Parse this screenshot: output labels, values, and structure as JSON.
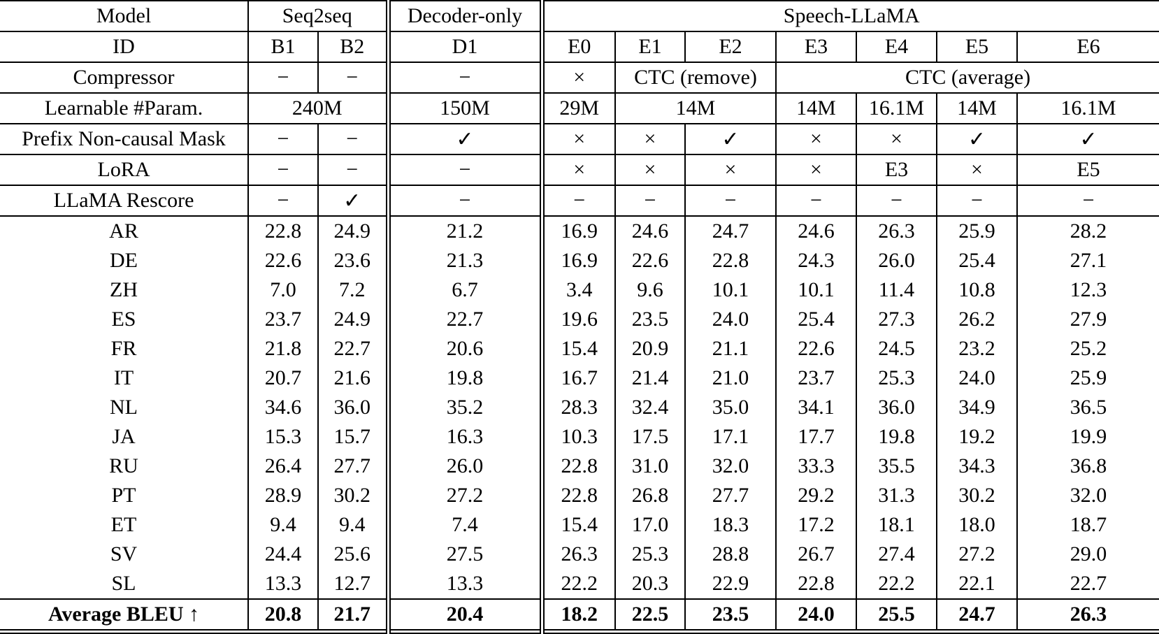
{
  "colors": {
    "text": "#000000",
    "background": "#ffffff"
  },
  "table": {
    "top_header": {
      "model_label": "Model",
      "groups": [
        {
          "label": "Seq2seq"
        },
        {
          "label": "Decoder-only"
        },
        {
          "label": "Speech-LLaMA"
        }
      ]
    },
    "id_row": {
      "label": "ID",
      "ids": [
        "B1",
        "B2",
        "D1",
        "E0",
        "E1",
        "E2",
        "E3",
        "E4",
        "E5",
        "E6"
      ]
    },
    "config_rows": [
      {
        "label": "Compressor",
        "cells": [
          {
            "text": "−"
          },
          {
            "text": "−"
          },
          {
            "text": "−"
          },
          {
            "text": "×"
          },
          {
            "text": "CTC (remove)"
          },
          {
            "text": "CTC (average)"
          }
        ]
      },
      {
        "label": "Learnable #Param.",
        "cells": [
          {
            "text": "240M"
          },
          {
            "text": "150M"
          },
          {
            "text": "29M"
          },
          {
            "text": "14M"
          },
          {
            "text": "14M"
          },
          {
            "text": "16.1M"
          },
          {
            "text": "14M"
          },
          {
            "text": "16.1M"
          }
        ]
      },
      {
        "label": "Prefix Non-causal Mask",
        "cells": [
          {
            "text": "−"
          },
          {
            "text": "−"
          },
          {
            "text": "✓"
          },
          {
            "text": "×"
          },
          {
            "text": "×"
          },
          {
            "text": "✓"
          },
          {
            "text": "×"
          },
          {
            "text": "×"
          },
          {
            "text": "✓"
          },
          {
            "text": "✓"
          }
        ]
      },
      {
        "label": "LoRA",
        "cells": [
          {
            "text": "−"
          },
          {
            "text": "−"
          },
          {
            "text": "−"
          },
          {
            "text": "×"
          },
          {
            "text": "×"
          },
          {
            "text": "×"
          },
          {
            "text": "×"
          },
          {
            "text": "E3"
          },
          {
            "text": "×"
          },
          {
            "text": "E5"
          }
        ]
      },
      {
        "label": "LLaMA Rescore",
        "cells": [
          {
            "text": "−"
          },
          {
            "text": "✓"
          },
          {
            "text": "−"
          },
          {
            "text": "−"
          },
          {
            "text": "−"
          },
          {
            "text": "−"
          },
          {
            "text": "−"
          },
          {
            "text": "−"
          },
          {
            "text": "−"
          },
          {
            "text": "−"
          }
        ]
      }
    ],
    "language_rows": [
      {
        "label": "AR",
        "values": [
          "22.8",
          "24.9",
          "21.2",
          "16.9",
          "24.6",
          "24.7",
          "24.6",
          "26.3",
          "25.9",
          "28.2"
        ]
      },
      {
        "label": "DE",
        "values": [
          "22.6",
          "23.6",
          "21.3",
          "16.9",
          "22.6",
          "22.8",
          "24.3",
          "26.0",
          "25.4",
          "27.1"
        ]
      },
      {
        "label": "ZH",
        "values": [
          "7.0",
          "7.2",
          "6.7",
          "3.4",
          "9.6",
          "10.1",
          "10.1",
          "11.4",
          "10.8",
          "12.3"
        ]
      },
      {
        "label": "ES",
        "values": [
          "23.7",
          "24.9",
          "22.7",
          "19.6",
          "23.5",
          "24.0",
          "25.4",
          "27.3",
          "26.2",
          "27.9"
        ]
      },
      {
        "label": "FR",
        "values": [
          "21.8",
          "22.7",
          "20.6",
          "15.4",
          "20.9",
          "21.1",
          "22.6",
          "24.5",
          "23.2",
          "25.2"
        ]
      },
      {
        "label": "IT",
        "values": [
          "20.7",
          "21.6",
          "19.8",
          "16.7",
          "21.4",
          "21.0",
          "23.7",
          "25.3",
          "24.0",
          "25.9"
        ]
      },
      {
        "label": "NL",
        "values": [
          "34.6",
          "36.0",
          "35.2",
          "28.3",
          "32.4",
          "35.0",
          "34.1",
          "36.0",
          "34.9",
          "36.5"
        ]
      },
      {
        "label": "JA",
        "values": [
          "15.3",
          "15.7",
          "16.3",
          "10.3",
          "17.5",
          "17.1",
          "17.7",
          "19.8",
          "19.2",
          "19.9"
        ]
      },
      {
        "label": "RU",
        "values": [
          "26.4",
          "27.7",
          "26.0",
          "22.8",
          "31.0",
          "32.0",
          "33.3",
          "35.5",
          "34.3",
          "36.8"
        ]
      },
      {
        "label": "PT",
        "values": [
          "28.9",
          "30.2",
          "27.2",
          "22.8",
          "26.8",
          "27.7",
          "29.2",
          "31.3",
          "30.2",
          "32.0"
        ]
      },
      {
        "label": "ET",
        "values": [
          "9.4",
          "9.4",
          "7.4",
          "15.4",
          "17.0",
          "18.3",
          "17.2",
          "18.1",
          "18.0",
          "18.7"
        ]
      },
      {
        "label": "SV",
        "values": [
          "24.4",
          "25.6",
          "27.5",
          "26.3",
          "25.3",
          "28.8",
          "26.7",
          "27.4",
          "27.2",
          "29.0"
        ]
      },
      {
        "label": "SL",
        "values": [
          "13.3",
          "12.7",
          "13.3",
          "22.2",
          "20.3",
          "22.9",
          "22.8",
          "22.2",
          "22.1",
          "22.7"
        ]
      }
    ],
    "average_row": {
      "label": "Average BLEU ↑",
      "values": [
        "20.8",
        "21.7",
        "20.4",
        "18.2",
        "22.5",
        "23.5",
        "24.0",
        "25.5",
        "24.7",
        "26.3"
      ]
    }
  }
}
